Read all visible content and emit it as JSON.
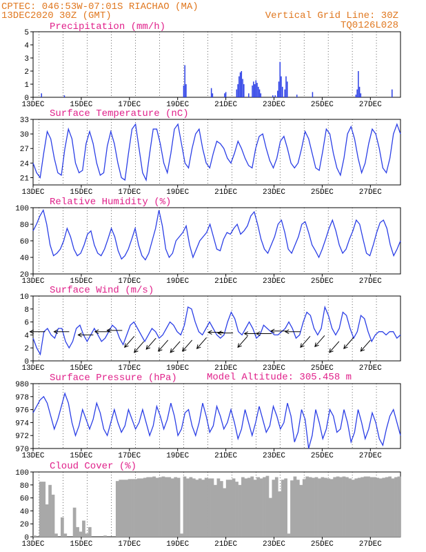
{
  "header": {
    "line1": "CPTEC:  046:53W-07:01S  RIACHAO (MA)",
    "line2": "13DEC2020 30Z (GMT)",
    "grid_note": "Vertical Grid Line: 30Z",
    "code": "TQ0126L028"
  },
  "x_ticks": [
    "13DEC",
    "15DEC",
    "17DEC",
    "19DEC",
    "21DEC",
    "23DEC",
    "25DEC",
    "27DEC"
  ],
  "model_altitude": "Model Altitude: 305.458 m",
  "colors": {
    "line": "#2a3ee6",
    "title": "#e0208a",
    "header": "#e07820",
    "cloud": "#a8a8a8"
  },
  "chart_data": [
    {
      "type": "bar",
      "title": "Precipitation (mm/h)",
      "ylim": [
        0,
        5
      ],
      "yticks": [
        "0",
        "1",
        "2",
        "3",
        "4",
        "5"
      ],
      "x_unit": "days since 13DEC 00Z",
      "bars": [
        [
          0.35,
          0.3
        ],
        [
          1.3,
          0.15
        ],
        [
          6.25,
          0.9
        ],
        [
          6.3,
          2.45
        ],
        [
          6.35,
          1.0
        ],
        [
          7.4,
          0.7
        ],
        [
          7.45,
          0.3
        ],
        [
          7.95,
          0.3
        ],
        [
          8.0,
          0.4
        ],
        [
          8.45,
          0.6
        ],
        [
          8.5,
          1.0
        ],
        [
          8.55,
          1.6
        ],
        [
          8.6,
          1.9
        ],
        [
          8.65,
          2.0
        ],
        [
          8.7,
          1.4
        ],
        [
          8.75,
          1.0
        ],
        [
          8.95,
          0.3
        ],
        [
          9.1,
          0.9
        ],
        [
          9.15,
          1.2
        ],
        [
          9.2,
          1.0
        ],
        [
          9.25,
          1.3
        ],
        [
          9.3,
          1.1
        ],
        [
          9.35,
          0.8
        ],
        [
          9.4,
          0.6
        ],
        [
          9.45,
          0.3
        ],
        [
          9.95,
          0.15
        ],
        [
          10.05,
          0.15
        ],
        [
          10.15,
          0.5
        ],
        [
          10.2,
          1.2
        ],
        [
          10.25,
          2.7
        ],
        [
          10.3,
          1.6
        ],
        [
          10.35,
          0.8
        ],
        [
          10.45,
          0.6
        ],
        [
          10.5,
          1.6
        ],
        [
          10.55,
          1.2
        ],
        [
          10.95,
          0.2
        ],
        [
          11.6,
          0.4
        ],
        [
          13.4,
          0.2
        ],
        [
          13.45,
          0.6
        ],
        [
          13.5,
          2.0
        ],
        [
          13.55,
          0.8
        ],
        [
          13.6,
          0.3
        ],
        [
          14.9,
          0.6
        ]
      ]
    },
    {
      "type": "line",
      "title": "Surface Temperature (nC)",
      "ylim": [
        19.5,
        33
      ],
      "yticks": [
        "21",
        "24",
        "27",
        "30",
        "33"
      ],
      "values": [
        24,
        22,
        21,
        26,
        30.5,
        29,
        25,
        22,
        21.5,
        27,
        31,
        29,
        24,
        22,
        22.5,
        28,
        30.5,
        28,
        24,
        21.5,
        22,
        27.5,
        30.5,
        28,
        24,
        21,
        20.5,
        26,
        31,
        32,
        27,
        22,
        20.5,
        26,
        31,
        31,
        28,
        24,
        22,
        26,
        31,
        32,
        28,
        24,
        23,
        27,
        30,
        31,
        27,
        24,
        23,
        26,
        28.5,
        28,
        27,
        25,
        24,
        26,
        28.5,
        27,
        25,
        23.5,
        23,
        27,
        29.5,
        30,
        27,
        24.5,
        23,
        25,
        28.5,
        29.5,
        27,
        24,
        23,
        24,
        27,
        30.5,
        29,
        26,
        23,
        22.5,
        26.5,
        31,
        30,
        26,
        23,
        21.5,
        25,
        30,
        31.5,
        29,
        25,
        22,
        24,
        28,
        31,
        30,
        27,
        23,
        22,
        25,
        30,
        32,
        30
      ]
    },
    {
      "type": "line",
      "title": "Relative Humidity (%)",
      "ylim": [
        20,
        100
      ],
      "yticks": [
        "20",
        "40",
        "60",
        "80",
        "100"
      ],
      "values": [
        72,
        80,
        90,
        97,
        80,
        55,
        42,
        45,
        50,
        60,
        75,
        65,
        50,
        42,
        45,
        55,
        68,
        72,
        55,
        45,
        42,
        50,
        62,
        75,
        65,
        48,
        38,
        42,
        50,
        62,
        75,
        55,
        42,
        37,
        45,
        60,
        75,
        97,
        78,
        50,
        40,
        45,
        60,
        65,
        70,
        78,
        55,
        40,
        50,
        60,
        65,
        70,
        80,
        65,
        50,
        48,
        62,
        70,
        68,
        75,
        80,
        68,
        72,
        78,
        90,
        95,
        80,
        62,
        50,
        45,
        55,
        65,
        80,
        85,
        70,
        50,
        45,
        55,
        65,
        80,
        83,
        70,
        55,
        48,
        40,
        50,
        62,
        75,
        85,
        72,
        55,
        45,
        50,
        62,
        72,
        85,
        80,
        62,
        45,
        42,
        55,
        70,
        82,
        85,
        75,
        55,
        42,
        50,
        60
      ]
    },
    {
      "type": "line",
      "title": "Surface Wind (m/s)",
      "ylim": [
        0,
        10
      ],
      "yticks": [
        "0",
        "2",
        "4",
        "6",
        "8",
        "10"
      ],
      "values": [
        3.5,
        2,
        1,
        4.5,
        5,
        4,
        3.5,
        5,
        5,
        3,
        2,
        3,
        5,
        5.5,
        4,
        3,
        4,
        5,
        4,
        3,
        3.5,
        4.5,
        5.5,
        5,
        3.5,
        2.5,
        4,
        5.5,
        6,
        5,
        4,
        3,
        4,
        5,
        4.5,
        3.5,
        4,
        5,
        6,
        5.5,
        4.5,
        4,
        5.5,
        8.3,
        8,
        6,
        4.5,
        4,
        5,
        6,
        5,
        4,
        3.5,
        4,
        6,
        7.5,
        6.5,
        4.5,
        4,
        5,
        6,
        5,
        3.5,
        4,
        5.5,
        5,
        4.5,
        4,
        4,
        4.5,
        5,
        6,
        5,
        3.5,
        4,
        6,
        7.5,
        7,
        5,
        4,
        5,
        8.3,
        7,
        5,
        4,
        5,
        7.5,
        7,
        5,
        3.5,
        4.5,
        7,
        6.5,
        4.5,
        3,
        4,
        4.5,
        4.5,
        4,
        4.5,
        4.5,
        3.5,
        4
      ]
    },
    {
      "type": "line",
      "title": "Surface Pressure (hPa)",
      "ylim": [
        970,
        980
      ],
      "yticks": [
        "970",
        "972",
        "974",
        "976",
        "978",
        "980"
      ],
      "values": [
        975.5,
        976.5,
        977.5,
        978,
        977,
        975,
        973,
        974.5,
        976.5,
        978.5,
        977,
        974,
        972,
        973.5,
        976,
        974.5,
        973,
        974.5,
        977,
        975.5,
        973,
        972,
        974,
        976,
        974,
        972.5,
        973.5,
        976,
        974.5,
        973,
        974,
        976,
        974,
        972,
        973.5,
        976.5,
        975,
        973,
        974.5,
        977,
        975,
        972,
        973,
        975.5,
        976,
        973.5,
        972,
        974,
        977,
        975,
        972.5,
        973.5,
        976.5,
        975,
        973,
        974,
        976,
        974,
        971.5,
        973,
        976,
        974,
        972,
        974,
        976.5,
        974.5,
        972.5,
        973.5,
        976.5,
        975,
        973,
        974,
        977,
        975,
        971,
        972.5,
        976,
        974.5,
        970,
        972,
        976,
        974,
        971.5,
        973,
        976,
        975,
        972.5,
        973,
        976,
        974,
        971,
        972.5,
        976,
        974,
        971.5,
        973,
        975.5,
        974,
        971.5,
        970.5,
        973,
        975,
        976,
        974,
        972
      ]
    },
    {
      "type": "area",
      "title": "Cloud Cover (%)",
      "ylim": [
        0,
        100
      ],
      "yticks": [
        "0",
        "20",
        "40",
        "60",
        "80",
        "100"
      ],
      "values": [
        2,
        0,
        85,
        85,
        50,
        80,
        65,
        5,
        0,
        30,
        5,
        0,
        0,
        45,
        15,
        8,
        25,
        5,
        15,
        0,
        0,
        0,
        0,
        2,
        0,
        0,
        0,
        86,
        88,
        88,
        88,
        89,
        89,
        89,
        90,
        90,
        91,
        92,
        92,
        93,
        91,
        92,
        93,
        92,
        92,
        90,
        92,
        91,
        5,
        93,
        90,
        92,
        90,
        88,
        90,
        88,
        91,
        90,
        90,
        80,
        90,
        86,
        75,
        88,
        88,
        90,
        85,
        80,
        92,
        90,
        91,
        93,
        88,
        92,
        90,
        92,
        94,
        60,
        88,
        92,
        70,
        88,
        90,
        5,
        87,
        93,
        88,
        80,
        89,
        93,
        92,
        91,
        92,
        90,
        92,
        91,
        90,
        89,
        92,
        93,
        92,
        93,
        92,
        90,
        88,
        90,
        91,
        92,
        93,
        93,
        92,
        92,
        91,
        90,
        91,
        92,
        93,
        90,
        92,
        93
      ]
    }
  ]
}
